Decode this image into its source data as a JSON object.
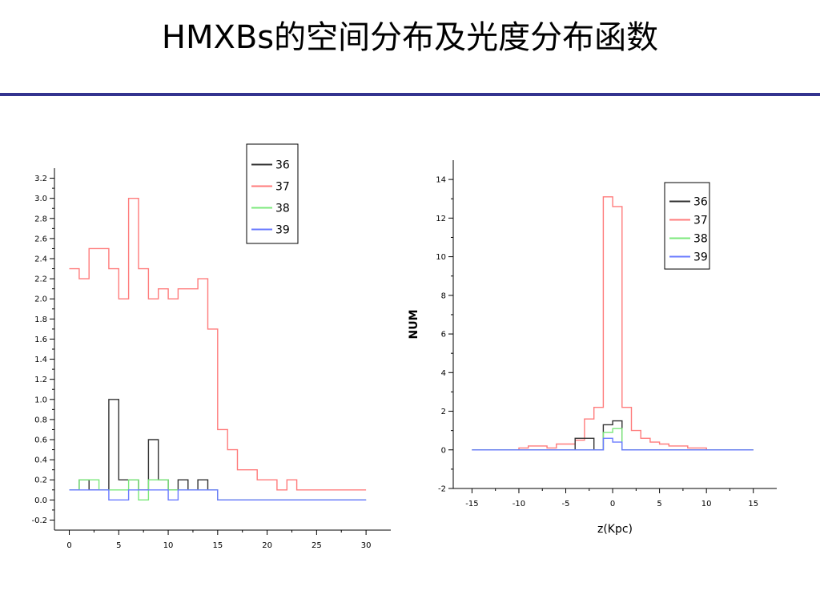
{
  "slide": {
    "title": "HMXBs的空间分布及光度分布函数"
  },
  "chart_data": [
    {
      "type": "line",
      "style": "step",
      "xlabel": "",
      "ylabel": "",
      "xlim": [
        -1.5,
        32.5
      ],
      "ylim": [
        -0.3,
        3.3
      ],
      "xticks": [
        0,
        5,
        10,
        15,
        20,
        25,
        30
      ],
      "yticks": [
        -0.2,
        0.0,
        0.2,
        0.4,
        0.6,
        0.8,
        1.0,
        1.2,
        1.4,
        1.6,
        1.8,
        2.0,
        2.2,
        2.4,
        2.6,
        2.8,
        3.0,
        3.2
      ],
      "legend": "top-center",
      "grid": false,
      "series": [
        {
          "name": "37",
          "color": "#ff7b7b",
          "x": [
            0.5,
            1.5,
            2.5,
            3.5,
            4.5,
            5.5,
            6.5,
            7.5,
            8.5,
            9.5,
            10.5,
            11.5,
            12.5,
            13.5,
            14.5,
            15.5,
            16.5,
            17.5,
            18.5,
            19.5,
            20.5,
            21.5,
            22.5,
            23.5,
            24.5,
            25.5,
            26.5,
            27.5,
            28.5,
            29.5
          ],
          "y": [
            2.3,
            2.2,
            2.5,
            2.5,
            2.3,
            2.0,
            3.0,
            2.3,
            2.0,
            2.1,
            2.0,
            2.1,
            2.1,
            2.2,
            1.7,
            0.7,
            0.5,
            0.3,
            0.3,
            0.2,
            0.2,
            0.1,
            0.2,
            0.1,
            0.1,
            0.1,
            0.1,
            0.1,
            0.1,
            0.1
          ]
        },
        {
          "name": "36",
          "color": "#333333",
          "x": [
            0.5,
            1.5,
            2.5,
            3.5,
            4.5,
            5.5,
            6.5,
            7.5,
            8.5,
            9.5,
            10.5,
            11.5,
            12.5,
            13.5,
            14.5,
            15.5,
            16.5,
            17.5,
            18.5,
            19.5,
            20.5,
            21.5,
            22.5,
            23.5,
            24.5,
            25.5,
            26.5,
            27.5,
            28.5,
            29.5
          ],
          "y": [
            0.1,
            0.2,
            0.1,
            0.1,
            1.0,
            0.2,
            0.2,
            0.1,
            0.6,
            0.2,
            0.1,
            0.2,
            0.1,
            0.2,
            0.1,
            0.0,
            0.0,
            0.0,
            0.0,
            0.0,
            0.0,
            0.0,
            0.0,
            0.0,
            0.0,
            0.0,
            0.0,
            0.0,
            0.0,
            0.0
          ]
        },
        {
          "name": "38",
          "color": "#7be87b",
          "x": [
            0.5,
            1.5,
            2.5,
            3.5,
            4.5,
            5.5,
            6.5,
            7.5,
            8.5,
            9.5,
            10.5,
            11.5,
            12.5,
            13.5,
            14.5,
            15.5,
            16.5,
            17.5,
            18.5,
            19.5,
            20.5,
            21.5,
            22.5,
            23.5,
            24.5,
            25.5,
            26.5,
            27.5,
            28.5,
            29.5
          ],
          "y": [
            0.1,
            0.2,
            0.2,
            0.1,
            0.1,
            0.1,
            0.2,
            0.0,
            0.2,
            0.2,
            0.1,
            0.1,
            0.1,
            0.1,
            0.1,
            0.0,
            0.0,
            0.0,
            0.0,
            0.0,
            0.0,
            0.0,
            0.0,
            0.0,
            0.0,
            0.0,
            0.0,
            0.0,
            0.0,
            0.0
          ]
        },
        {
          "name": "39",
          "color": "#6a7bff",
          "x": [
            0.5,
            1.5,
            2.5,
            3.5,
            4.5,
            5.5,
            6.5,
            7.5,
            8.5,
            9.5,
            10.5,
            11.5,
            12.5,
            13.5,
            14.5,
            15.5,
            16.5,
            17.5,
            18.5,
            19.5,
            20.5,
            21.5,
            22.5,
            23.5,
            24.5,
            25.5,
            26.5,
            27.5,
            28.5,
            29.5
          ],
          "y": [
            0.1,
            0.1,
            0.1,
            0.1,
            0.0,
            0.0,
            0.1,
            0.1,
            0.1,
            0.1,
            0.0,
            0.1,
            0.1,
            0.1,
            0.1,
            0.0,
            0.0,
            0.0,
            0.0,
            0.0,
            0.0,
            0.0,
            0.0,
            0.0,
            0.0,
            0.0,
            0.0,
            0.0,
            0.0,
            0.0
          ]
        }
      ]
    },
    {
      "type": "line",
      "style": "step",
      "xlabel": "z(Kpc)",
      "ylabel": "NUM",
      "xlim": [
        -17,
        17.5
      ],
      "ylim": [
        -2,
        15
      ],
      "xticks": [
        -15,
        -10,
        -5,
        0,
        5,
        10,
        15
      ],
      "yticks": [
        -2,
        0,
        2,
        4,
        6,
        8,
        10,
        12,
        14
      ],
      "legend": "top-right",
      "grid": false,
      "series": [
        {
          "name": "37",
          "color": "#ff7b7b",
          "x": [
            -14.5,
            -13.5,
            -12.5,
            -11.5,
            -10.5,
            -9.5,
            -8.5,
            -7.5,
            -6.5,
            -5.5,
            -4.5,
            -3.5,
            -2.5,
            -1.5,
            -0.5,
            0.5,
            1.5,
            2.5,
            3.5,
            4.5,
            5.5,
            6.5,
            7.5,
            8.5,
            9.5,
            10.5,
            11.5,
            12.5,
            13.5,
            14.5
          ],
          "y": [
            0,
            0,
            0,
            0,
            0,
            0.1,
            0.2,
            0.2,
            0.1,
            0.3,
            0.3,
            0.5,
            1.6,
            2.2,
            13.1,
            12.6,
            2.2,
            1.0,
            0.6,
            0.4,
            0.3,
            0.2,
            0.2,
            0.1,
            0.1,
            0,
            0,
            0,
            0,
            0
          ]
        },
        {
          "name": "36",
          "color": "#333333",
          "x": [
            -14.5,
            -13.5,
            -12.5,
            -11.5,
            -10.5,
            -9.5,
            -8.5,
            -7.5,
            -6.5,
            -5.5,
            -4.5,
            -3.5,
            -2.5,
            -1.5,
            -0.5,
            0.5,
            1.5,
            2.5,
            3.5,
            4.5,
            5.5,
            6.5,
            7.5,
            8.5,
            9.5,
            10.5,
            11.5,
            12.5,
            13.5,
            14.5
          ],
          "y": [
            0,
            0,
            0,
            0,
            0,
            0,
            0,
            0,
            0,
            0,
            0,
            0.6,
            0.6,
            0,
            1.3,
            1.5,
            0,
            0,
            0,
            0,
            0,
            0,
            0,
            0,
            0,
            0,
            0,
            0,
            0,
            0
          ]
        },
        {
          "name": "38",
          "color": "#7be87b",
          "x": [
            -14.5,
            -13.5,
            -12.5,
            -11.5,
            -10.5,
            -9.5,
            -8.5,
            -7.5,
            -6.5,
            -5.5,
            -4.5,
            -3.5,
            -2.5,
            -1.5,
            -0.5,
            0.5,
            1.5,
            2.5,
            3.5,
            4.5,
            5.5,
            6.5,
            7.5,
            8.5,
            9.5,
            10.5,
            11.5,
            12.5,
            13.5,
            14.5
          ],
          "y": [
            0,
            0,
            0,
            0,
            0,
            0,
            0,
            0,
            0,
            0,
            0,
            0,
            0,
            0,
            0.9,
            1.1,
            0,
            0,
            0,
            0,
            0,
            0,
            0,
            0,
            0,
            0,
            0,
            0,
            0,
            0
          ]
        },
        {
          "name": "39",
          "color": "#6a7bff",
          "x": [
            -14.5,
            -13.5,
            -12.5,
            -11.5,
            -10.5,
            -9.5,
            -8.5,
            -7.5,
            -6.5,
            -5.5,
            -4.5,
            -3.5,
            -2.5,
            -1.5,
            -0.5,
            0.5,
            1.5,
            2.5,
            3.5,
            4.5,
            5.5,
            6.5,
            7.5,
            8.5,
            9.5,
            10.5,
            11.5,
            12.5,
            13.5,
            14.5
          ],
          "y": [
            0,
            0,
            0,
            0,
            0,
            0,
            0,
            0,
            0,
            0,
            0,
            0,
            0,
            0,
            0.6,
            0.4,
            0,
            0,
            0,
            0,
            0,
            0,
            0,
            0,
            0,
            0,
            0,
            0,
            0,
            0
          ]
        }
      ]
    }
  ]
}
